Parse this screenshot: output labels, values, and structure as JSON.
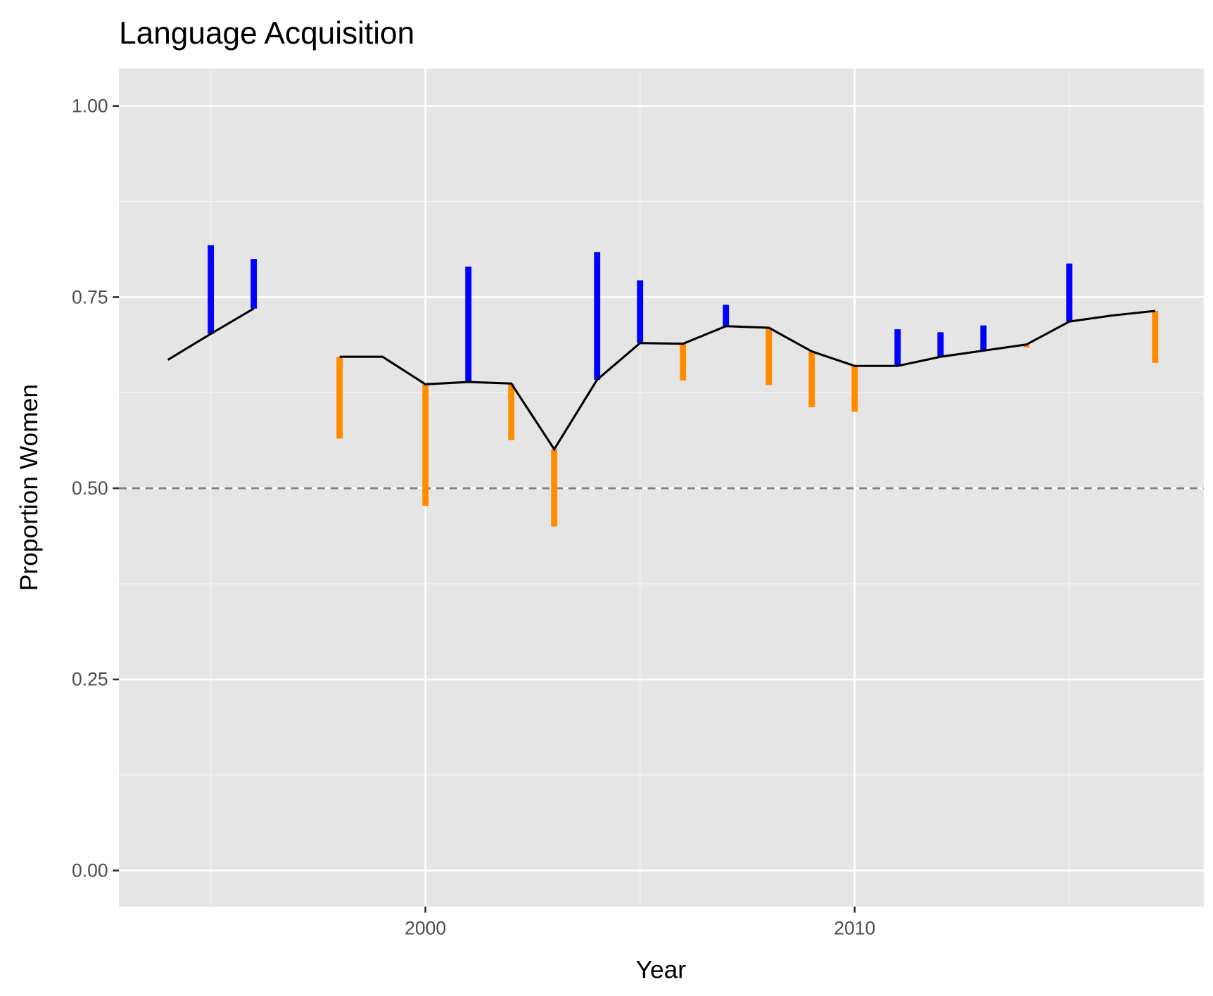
{
  "chart_data": {
    "type": "line-segments",
    "title": "Language Acquisition",
    "x_label": "Year",
    "y_label": "Proportion Women",
    "x": [
      1994,
      1995,
      1996,
      1997,
      1998,
      1999,
      2000,
      2001,
      2002,
      2003,
      2004,
      2005,
      2006,
      2007,
      2008,
      2009,
      2010,
      2011,
      2012,
      2013,
      2014,
      2015,
      2016,
      2017
    ],
    "values": [
      0.668,
      0.702,
      0.735,
      null,
      0.672,
      0.672,
      0.636,
      0.639,
      0.637,
      0.551,
      0.642,
      0.69,
      0.689,
      0.712,
      0.71,
      0.679,
      0.66,
      0.66,
      0.672,
      0.68,
      0.688,
      0.718,
      0.726,
      0.732
    ],
    "segment_ends": [
      null,
      0.818,
      0.8,
      null,
      0.565,
      null,
      0.477,
      0.79,
      0.563,
      0.45,
      0.809,
      0.772,
      0.641,
      0.74,
      0.635,
      0.606,
      0.6,
      0.708,
      0.704,
      0.713,
      0.684,
      0.794,
      0.727,
      0.664
    ],
    "line_color": "#000000",
    "up_color": "#0000ff",
    "down_color": "#ff8c00",
    "reference_line": 0.5,
    "reference_color": "#808080",
    "xlim": [
      1992.86,
      2018.13
    ],
    "ylim": [
      -0.047,
      1.049
    ],
    "xticks": [
      2000,
      2010
    ],
    "minor_xticks": [
      1995,
      2005,
      2015
    ],
    "yticks": [
      {
        "value": 0,
        "label": "0.00"
      },
      {
        "value": 0.25,
        "label": "0.25"
      },
      {
        "value": 0.5,
        "label": "0.50"
      },
      {
        "value": 0.75,
        "label": "0.75"
      },
      {
        "value": 1,
        "label": "1.00"
      }
    ],
    "minor_yticks": [
      0.125,
      0.375,
      0.625,
      0.875
    ],
    "grid": true
  }
}
